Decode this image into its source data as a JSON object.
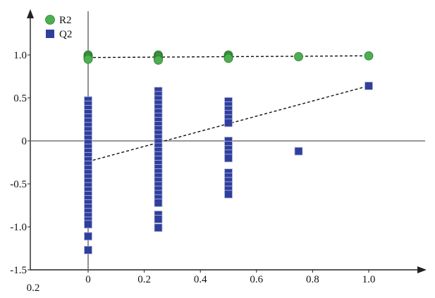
{
  "chart_data": {
    "type": "scatter",
    "title": "",
    "xlabel": "",
    "ylabel": "",
    "xlim": [
      0,
      1.18
    ],
    "ylim": [
      -1.5,
      1.5
    ],
    "xticks": [
      0,
      0.2,
      0.4,
      0.6,
      0.8,
      1.0
    ],
    "xtick_labels": [
      "0",
      "0.2",
      "0.4",
      "0.6",
      "0.8",
      "1.0"
    ],
    "yticks": [
      1.0,
      0.5,
      0,
      -0.5,
      -1.0,
      -1.5
    ],
    "ytick_labels": [
      "1.0",
      "0.5",
      "0",
      "-0.5",
      "-1.0",
      "-1.5"
    ],
    "corner_label": "0.2",
    "legend": {
      "position": "top-left",
      "entries": [
        {
          "name": "R2",
          "color": "#4caf50",
          "marker": "circle"
        },
        {
          "name": "Q2",
          "color": "#2f3f9e",
          "marker": "square"
        }
      ]
    },
    "series": [
      {
        "name": "R2",
        "color": "#4caf50",
        "marker": "circle",
        "points": [
          [
            0,
            1.0
          ],
          [
            0,
            0.99
          ],
          [
            0,
            0.98
          ],
          [
            0,
            0.97
          ],
          [
            0,
            0.96
          ],
          [
            0,
            0.95
          ],
          [
            0.25,
            1.0
          ],
          [
            0.25,
            0.99
          ],
          [
            0.25,
            0.98
          ],
          [
            0.25,
            0.97
          ],
          [
            0.25,
            0.96
          ],
          [
            0.25,
            0.95
          ],
          [
            0.25,
            0.94
          ],
          [
            0.5,
            1.0
          ],
          [
            0.5,
            0.99
          ],
          [
            0.5,
            0.98
          ],
          [
            0.5,
            0.97
          ],
          [
            0.5,
            0.96
          ],
          [
            0.75,
            0.98
          ],
          [
            1.0,
            0.99
          ]
        ],
        "trendline": [
          [
            0,
            0.97
          ],
          [
            1.0,
            0.99
          ]
        ]
      },
      {
        "name": "Q2",
        "color": "#2f3f9e",
        "marker": "square",
        "points": [
          [
            0,
            0.47
          ],
          [
            0,
            0.42
          ],
          [
            0,
            0.37
          ],
          [
            0,
            0.32
          ],
          [
            0,
            0.27
          ],
          [
            0,
            0.22
          ],
          [
            0,
            0.17
          ],
          [
            0,
            0.12
          ],
          [
            0,
            0.07
          ],
          [
            0,
            0.02
          ],
          [
            0,
            -0.03
          ],
          [
            0,
            -0.08
          ],
          [
            0,
            -0.13
          ],
          [
            0,
            -0.18
          ],
          [
            0,
            -0.23
          ],
          [
            0,
            -0.28
          ],
          [
            0,
            -0.33
          ],
          [
            0,
            -0.38
          ],
          [
            0,
            -0.43
          ],
          [
            0,
            -0.48
          ],
          [
            0,
            -0.53
          ],
          [
            0,
            -0.58
          ],
          [
            0,
            -0.63
          ],
          [
            0,
            -0.68
          ],
          [
            0,
            -0.73
          ],
          [
            0,
            -0.78
          ],
          [
            0,
            -0.83
          ],
          [
            0,
            -0.88
          ],
          [
            0,
            -0.93
          ],
          [
            0,
            -0.97
          ],
          [
            0,
            -1.11
          ],
          [
            0,
            -1.27
          ],
          [
            0.25,
            0.58
          ],
          [
            0.25,
            0.53
          ],
          [
            0.25,
            0.48
          ],
          [
            0.25,
            0.43
          ],
          [
            0.25,
            0.38
          ],
          [
            0.25,
            0.33
          ],
          [
            0.25,
            0.28
          ],
          [
            0.25,
            0.23
          ],
          [
            0.25,
            0.18
          ],
          [
            0.25,
            0.13
          ],
          [
            0.25,
            0.08
          ],
          [
            0.25,
            0.03
          ],
          [
            0.25,
            -0.02
          ],
          [
            0.25,
            -0.07
          ],
          [
            0.25,
            -0.12
          ],
          [
            0.25,
            -0.17
          ],
          [
            0.25,
            -0.22
          ],
          [
            0.25,
            -0.27
          ],
          [
            0.25,
            -0.32
          ],
          [
            0.25,
            -0.37
          ],
          [
            0.25,
            -0.42
          ],
          [
            0.25,
            -0.47
          ],
          [
            0.25,
            -0.52
          ],
          [
            0.25,
            -0.57
          ],
          [
            0.25,
            -0.62
          ],
          [
            0.25,
            -0.67
          ],
          [
            0.25,
            -0.72
          ],
          [
            0.25,
            -0.86
          ],
          [
            0.25,
            -0.91
          ],
          [
            0.25,
            -1.01
          ],
          [
            0.5,
            0.46
          ],
          [
            0.5,
            0.41
          ],
          [
            0.5,
            0.36
          ],
          [
            0.5,
            0.31
          ],
          [
            0.5,
            0.26
          ],
          [
            0.5,
            0.21
          ],
          [
            0.5,
            0.0
          ],
          [
            0.5,
            -0.05
          ],
          [
            0.5,
            -0.1
          ],
          [
            0.5,
            -0.15
          ],
          [
            0.5,
            -0.2
          ],
          [
            0.5,
            -0.37
          ],
          [
            0.5,
            -0.42
          ],
          [
            0.5,
            -0.47
          ],
          [
            0.5,
            -0.52
          ],
          [
            0.5,
            -0.57
          ],
          [
            0.5,
            -0.62
          ],
          [
            0.75,
            -0.12
          ],
          [
            1.0,
            0.64
          ]
        ],
        "trendline": [
          [
            0,
            -0.24
          ],
          [
            1.0,
            0.64
          ]
        ]
      }
    ]
  }
}
